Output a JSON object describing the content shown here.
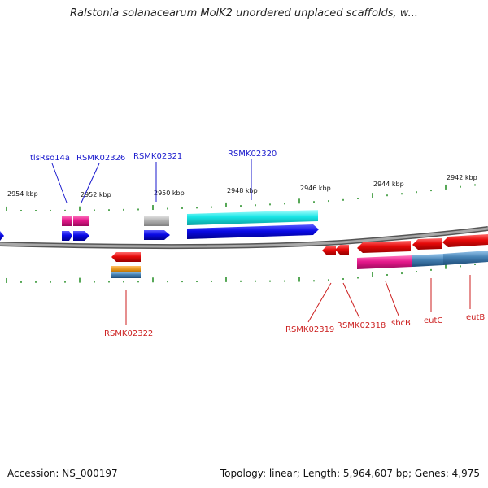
{
  "title": "Ralstonia solanacearum MolK2 unordered unplaced scaffolds, w...",
  "accession": "Accession: NS_000197",
  "topology": "Topology: linear; Length: 5,964,607 bp; Genes: 4,975",
  "kbp_labels": [
    "2954 kbp",
    "2952 kbp",
    "2950 kbp",
    "2948 kbp",
    "2946 kbp",
    "2944 kbp",
    "2942 kbp"
  ],
  "upper_gene_labels": [
    "tlsRso14a",
    "RSMK02326",
    "RSMK02321",
    "RSMK02320"
  ],
  "lower_gene_labels": [
    "RSMK02322",
    "RSMK02319",
    "RSMK02318",
    "sbcB",
    "eutC",
    "eutB"
  ],
  "colors": {
    "blue_label": "#1a1acd",
    "red_label": "#cc1f1f",
    "tick": "#1f8a1f",
    "backbone": "#8a8a8a",
    "blue_gene": "#0a0ae6",
    "red_gene": "#e60a0a",
    "magenta_gene": "#e6198c",
    "cyan_gene": "#19e6e6",
    "gray_gene": "#b4b4b4",
    "orange_gene": "#e6961e",
    "steel_gene": "#4682b4"
  }
}
